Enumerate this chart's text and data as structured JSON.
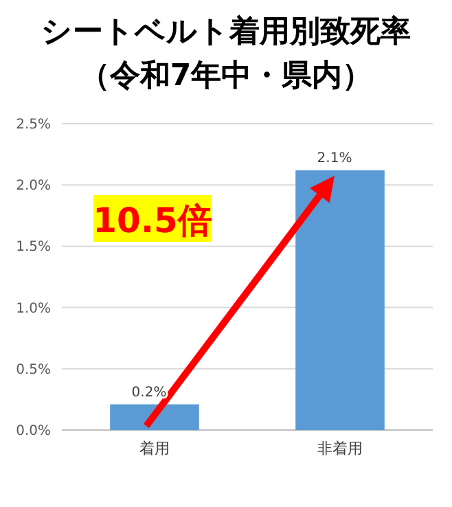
{
  "chart_data": {
    "type": "bar",
    "title": "シートベルト着用別致死率",
    "subtitle": "（令和7年中・県内）",
    "categories": [
      "着用",
      "非着用"
    ],
    "values": [
      0.21,
      2.12
    ],
    "value_labels": [
      "0.2%",
      "2.1%"
    ],
    "color": "#5b9bd5",
    "ylim": [
      0,
      2.5
    ],
    "yticks": [
      {
        "value": 0,
        "label": "0.0%"
      },
      {
        "value": 0.5,
        "label": "0.5%"
      },
      {
        "value": 1,
        "label": "1.0%"
      },
      {
        "value": 1.5,
        "label": "1.5%"
      },
      {
        "value": 2,
        "label": "2.0%"
      },
      {
        "value": 2.5,
        "label": "2.5%"
      }
    ],
    "grid": "y",
    "annotations": [
      "10.5倍"
    ]
  }
}
